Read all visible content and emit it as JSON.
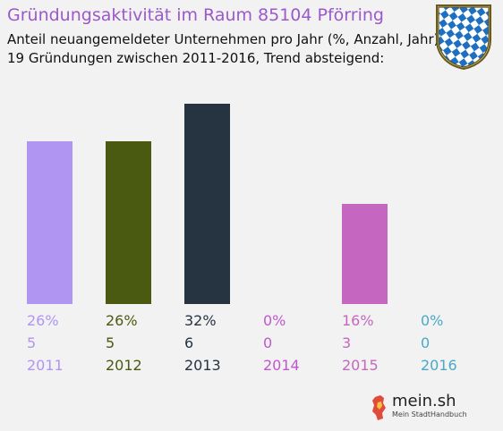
{
  "header": {
    "title": "Gründungsaktivität im Raum 85104 Pförring",
    "subtitle_line1": "Anteil neuangemeldeter Unternehmen pro Jahr (%, Anzahl, Jahr)",
    "subtitle_line2": "19 Gründungen zwischen 2011-2016, Trend absteigend:"
  },
  "crest": {
    "icon": "bavarian-lozenge-crest-icon",
    "colors": [
      "#1d6fc1",
      "#ffffff"
    ]
  },
  "logo": {
    "text": "mein.sh",
    "tagline": "Mein StadtHandbuch"
  },
  "chart_data": {
    "type": "bar",
    "title": "",
    "xlabel": "",
    "ylabel": "",
    "categories": [
      "2011",
      "2012",
      "2013",
      "2014",
      "2015",
      "2016"
    ],
    "values": [
      26,
      26,
      32,
      0,
      16,
      0
    ],
    "percent_labels": [
      "26%",
      "26%",
      "32%",
      "0%",
      "16%",
      "0%"
    ],
    "counts": [
      5,
      5,
      6,
      0,
      3,
      0
    ],
    "colors": [
      "#b095f2",
      "#4a5a10",
      "#263340",
      "#c157cf",
      "#c566c0",
      "#4aa9c8"
    ],
    "ylim": [
      0,
      32
    ]
  }
}
